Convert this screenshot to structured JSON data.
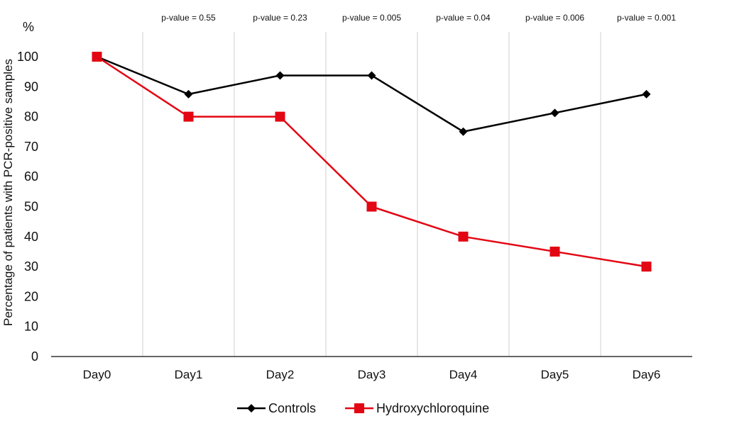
{
  "chart_data": {
    "type": "line",
    "title": "",
    "xlabel": "",
    "ylabel": "Percentage of patients with PCR-positive samples",
    "y_unit": "%",
    "ylim": [
      0,
      100
    ],
    "yticks": [
      0,
      10,
      20,
      30,
      40,
      50,
      60,
      70,
      80,
      90,
      100
    ],
    "categories": [
      "Day0",
      "Day1",
      "Day2",
      "Day3",
      "Day4",
      "Day5",
      "Day6"
    ],
    "annotations": [
      "p-value = 0.55",
      "p-value = 0.23",
      "p-value = 0.005",
      "p-value = 0.04",
      "p-value = 0.006",
      "p-value = 0.001"
    ],
    "grid": "vertical",
    "legend": "bottom",
    "series": [
      {
        "name": "Controls",
        "color": "#000000",
        "marker": "diamond",
        "values": [
          100,
          87.5,
          93.75,
          93.75,
          75,
          81.25,
          87.5
        ]
      },
      {
        "name": "Hydroxychloroquine",
        "color": "#e30613",
        "marker": "square",
        "values": [
          100,
          80,
          80,
          50,
          40,
          35,
          30
        ]
      }
    ]
  }
}
